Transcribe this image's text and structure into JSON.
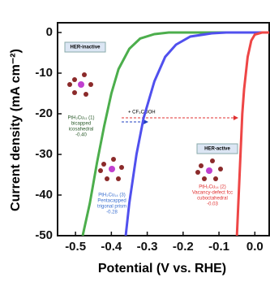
{
  "chart_data": {
    "type": "line",
    "xlabel": "Potential (V vs. RHE)",
    "ylabel": "Current density (mA cm⁻²)",
    "xlim": [
      -0.55,
      0.04
    ],
    "ylim": [
      -50,
      2.4
    ],
    "xticks": [
      -0.5,
      -0.4,
      -0.3,
      -0.2,
      -0.1,
      {
        "value": 0,
        "label": "0.0"
      }
    ],
    "yticks": [
      0,
      -10,
      -20,
      -30,
      -40,
      -50
    ],
    "series": [
      {
        "color": "#4cae4c",
        "x": [
          -0.48,
          -0.46,
          -0.44,
          -0.42,
          -0.4,
          -0.38,
          -0.35,
          -0.32,
          -0.28,
          -0.24,
          0.04
        ],
        "values": [
          -50,
          -42,
          -32,
          -23,
          -15,
          -9,
          -4,
          -1.5,
          -0.4,
          0,
          0
        ]
      },
      {
        "color": "#5050ee",
        "x": [
          -0.36,
          -0.35,
          -0.33,
          -0.31,
          -0.28,
          -0.25,
          -0.22,
          -0.18,
          -0.12,
          -0.08,
          0.04
        ],
        "values": [
          -50,
          -42,
          -30,
          -21,
          -12,
          -6,
          -3,
          -1,
          -0.2,
          0,
          0
        ]
      },
      {
        "color": "#ee4646",
        "x": [
          -0.05,
          -0.045,
          -0.04,
          -0.035,
          -0.03,
          -0.02,
          -0.01,
          0,
          0.02,
          0.04
        ],
        "values": [
          -50,
          -40,
          -30,
          -20,
          -14,
          -6,
          -2,
          -0.5,
          0,
          0
        ]
      }
    ],
    "boxes": [
      "HER-inactive",
      "HER-active"
    ],
    "reagent": "+ CF₃COOH",
    "labels": [
      {
        "color": "#2a5a2a",
        "lines": [
          "PtH₂Cu₁₁ (1)",
          "bicapped",
          "icosahedral",
          "-0.40"
        ]
      },
      {
        "color": "#3a6fd0",
        "lines": [
          "PtH₂Cu₁₄ (3)",
          "Pentacapped",
          "trigonal prism",
          "-0.28"
        ]
      },
      {
        "color": "#e03030",
        "lines": [
          "PtH₂Cu₁₄ (2)",
          "Vacancy-defect fcc",
          "cuboctahedral",
          "-0.03"
        ]
      }
    ]
  }
}
